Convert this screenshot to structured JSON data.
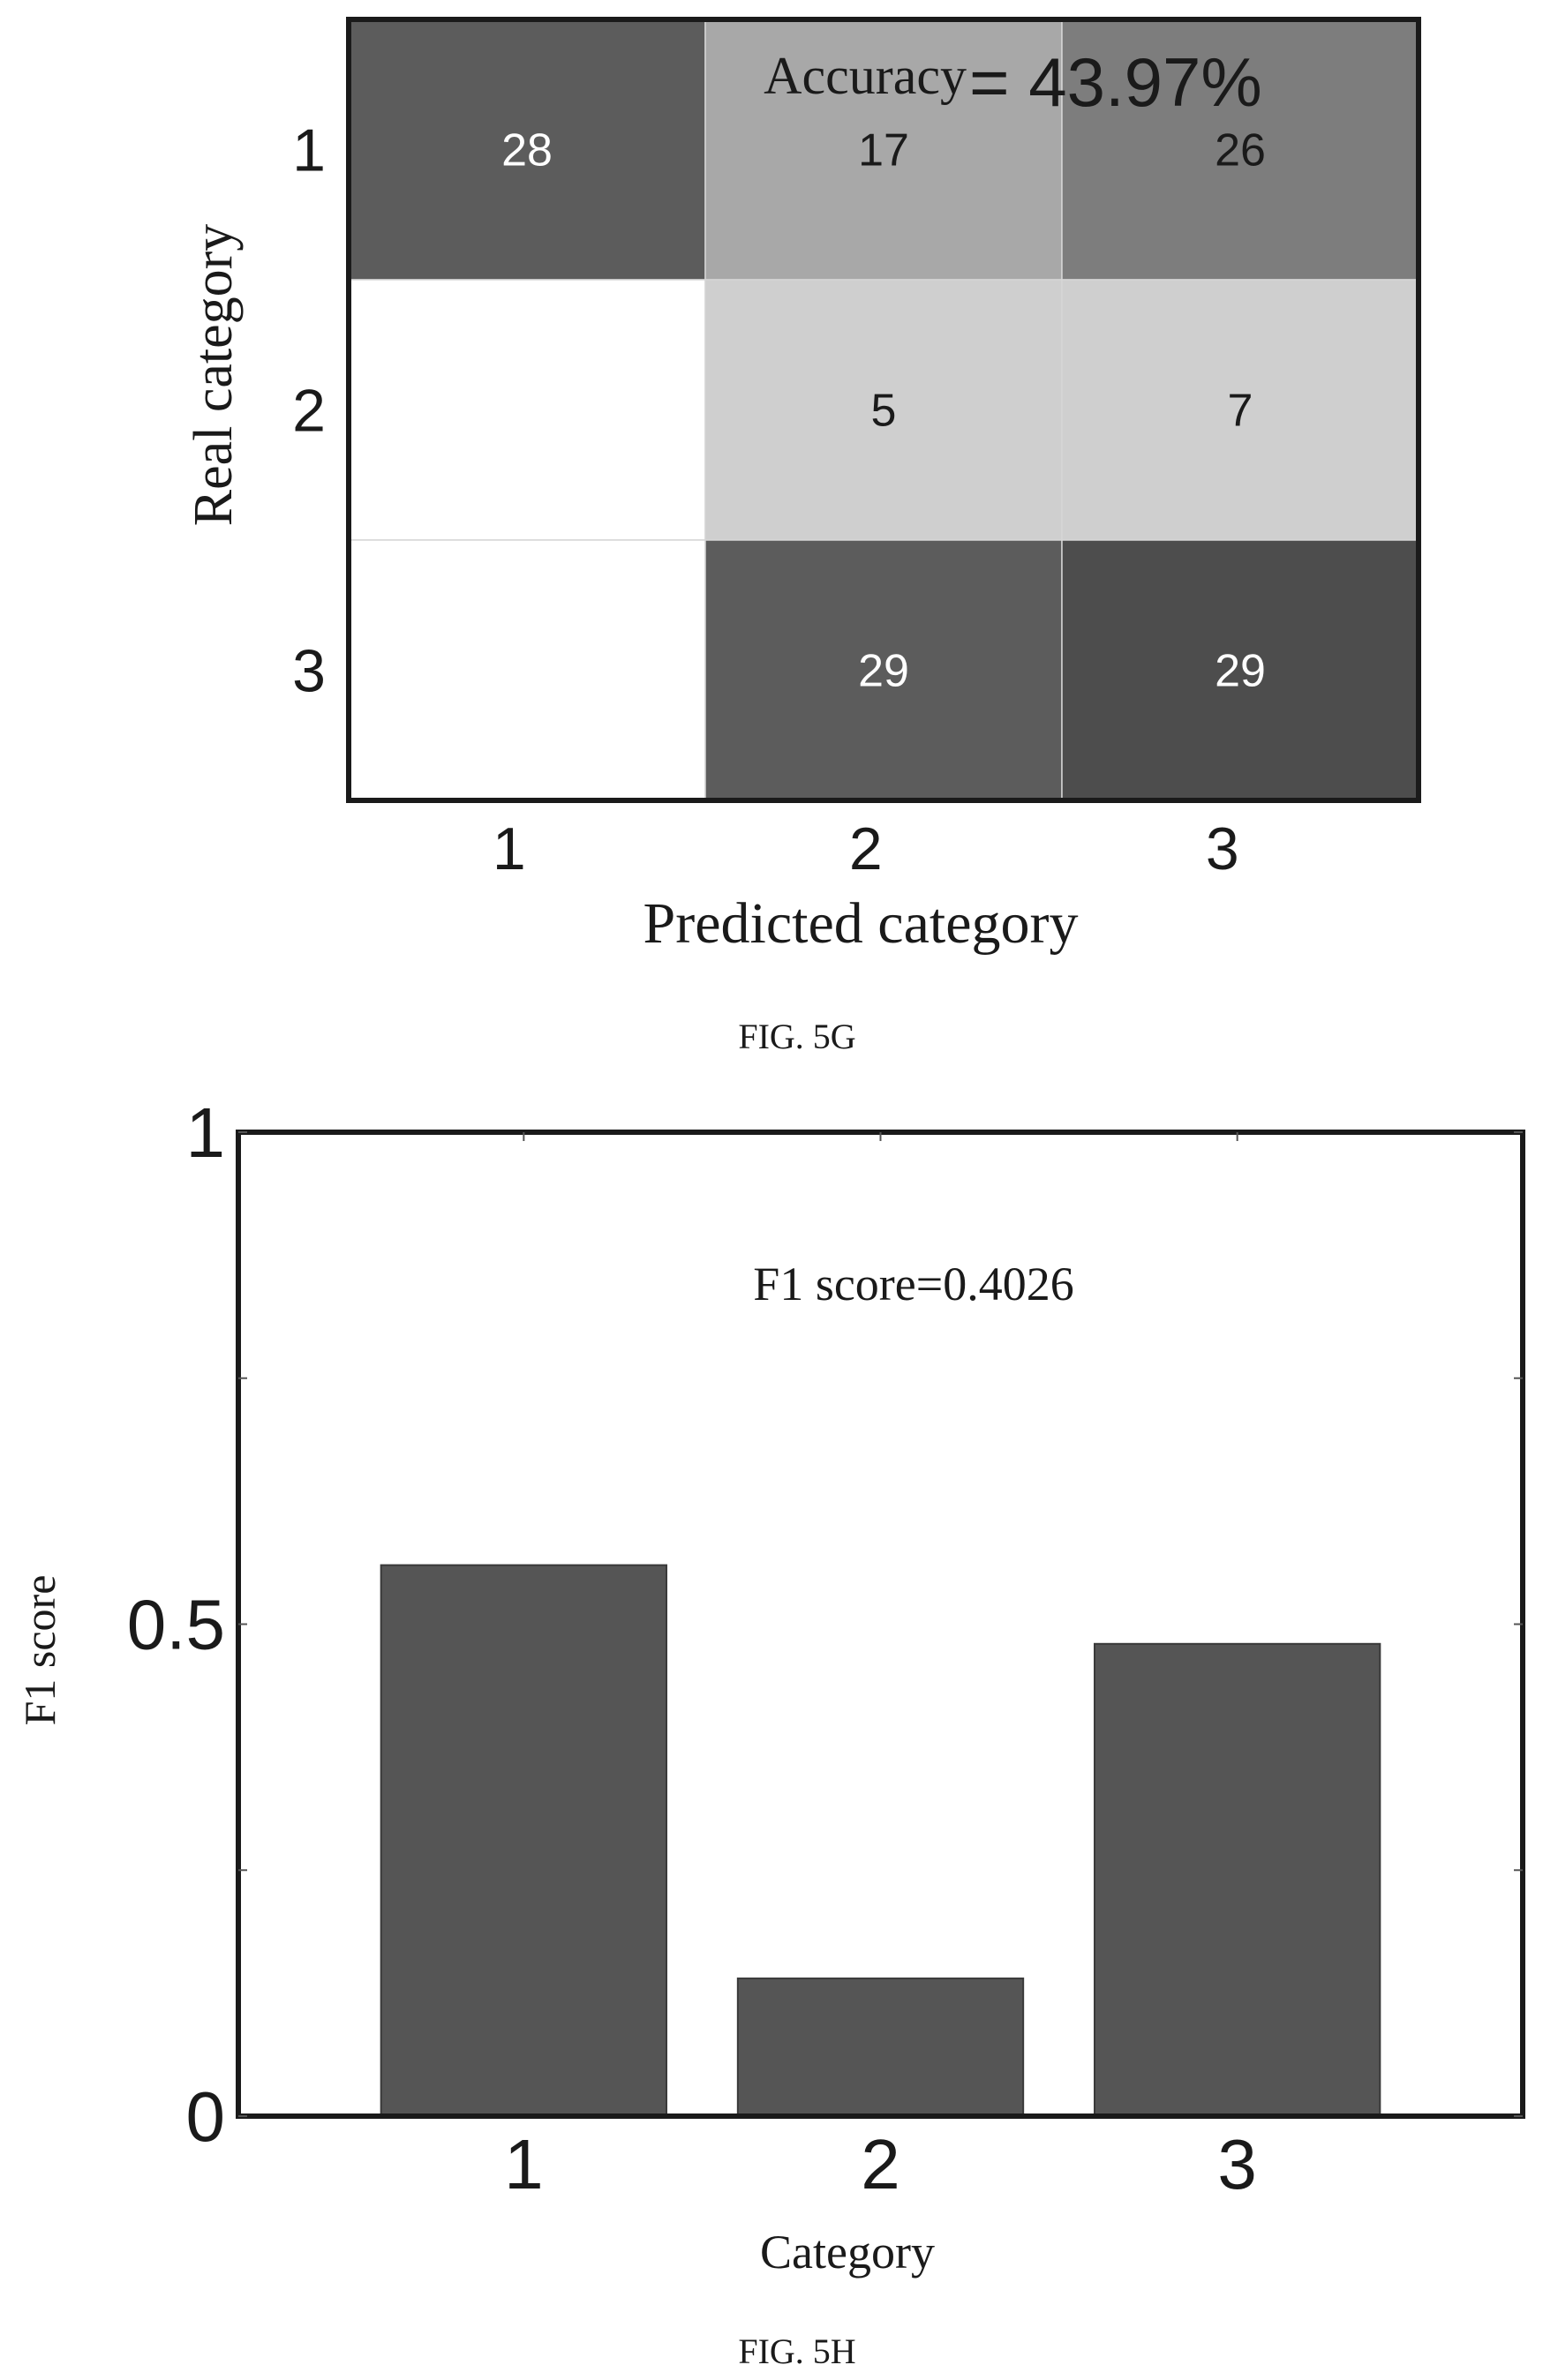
{
  "colors": {
    "cell_scale": [
      "#ffffff",
      "#cfcfcf",
      "#a8a8a8",
      "#7d7d7d",
      "#5c5c5c",
      "#4d4d4d"
    ],
    "bar_fill": "#555555",
    "axis": "#1a1a1a"
  },
  "figures": [
    {
      "caption": "FIG. 5G",
      "chart_data": {
        "type": "heatmap",
        "annotation": {
          "label": "Accuracy",
          "value": "= 43.97%"
        },
        "xlabel": "Predicted category",
        "ylabel": "Real category",
        "x_categories": [
          "1",
          "2",
          "3"
        ],
        "y_categories": [
          "1",
          "2",
          "3"
        ],
        "values": [
          [
            28,
            17,
            26
          ],
          [
            null,
            5,
            7
          ],
          [
            null,
            29,
            29
          ]
        ],
        "cell_labels": [
          [
            "28",
            "17",
            "26"
          ],
          [
            "",
            "5",
            "7"
          ],
          [
            "",
            "29",
            "29"
          ]
        ],
        "cell_shade": [
          [
            4,
            2,
            3
          ],
          [
            0,
            1,
            1
          ],
          [
            0,
            4,
            5
          ]
        ],
        "label_light": [
          [
            true,
            false,
            false
          ],
          [
            false,
            false,
            false
          ],
          [
            false,
            true,
            true
          ]
        ]
      }
    },
    {
      "caption": "FIG. 5H",
      "chart_data": {
        "type": "bar",
        "annotation": "F1 score=0.4026",
        "categories": [
          "1",
          "2",
          "3"
        ],
        "values": [
          0.56,
          0.14,
          0.48
        ],
        "xlabel": "Category",
        "ylabel": "F1 score",
        "ylim": [
          0,
          1
        ],
        "yticks": [
          {
            "value": 0,
            "label": "0"
          },
          {
            "value": 0.5,
            "label": "0.5"
          },
          {
            "value": 1,
            "label": "1"
          }
        ],
        "minor_yticks": [
          0.25,
          0.75
        ],
        "xlim": [
          0.2,
          3.8
        ],
        "grid": false
      }
    }
  ]
}
